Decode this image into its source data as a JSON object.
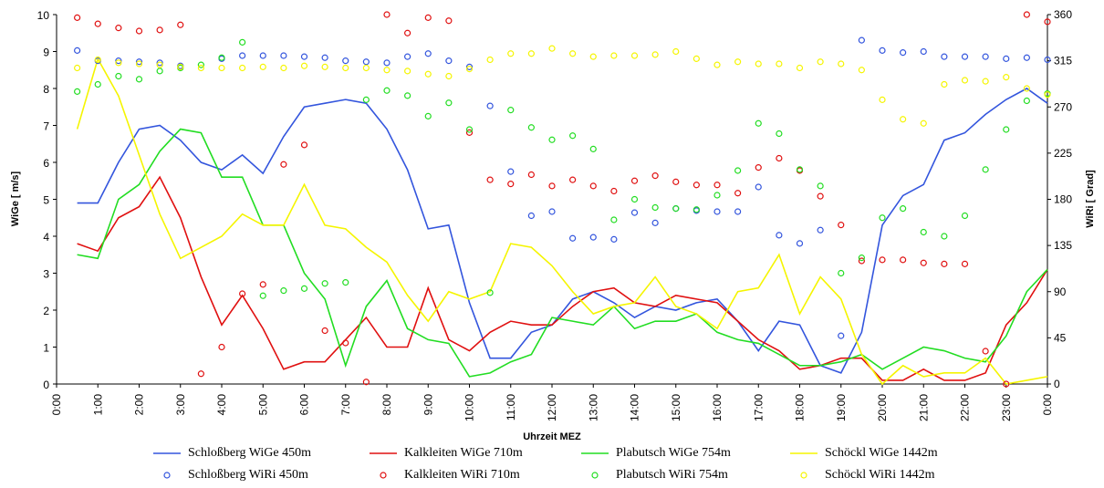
{
  "chart_data": {
    "type": "line",
    "x_label": "Uhrzeit MEZ",
    "y_label": "WiGe  [ m/s]",
    "y2_label": "WiRi  [ Grad]",
    "x": [
      0.5,
      1,
      1.5,
      2,
      2.5,
      3,
      3.5,
      4,
      4.5,
      5,
      5.5,
      6,
      6.5,
      7,
      7.5,
      8,
      8.5,
      9,
      9.5,
      10,
      10.5,
      11,
      11.5,
      12,
      12.5,
      13,
      13.5,
      14,
      14.5,
      15,
      15.5,
      16,
      16.5,
      17,
      17.5,
      18,
      18.5,
      19,
      19.5,
      20,
      20.5,
      21,
      21.5,
      22,
      22.5,
      23,
      23.5,
      24
    ],
    "xlim": [
      0,
      24
    ],
    "xticks": [
      {
        "value": 0,
        "label": "0:00"
      },
      {
        "value": 1,
        "label": "1:00"
      },
      {
        "value": 2,
        "label": "2:00"
      },
      {
        "value": 3,
        "label": "3:00"
      },
      {
        "value": 4,
        "label": "4:00"
      },
      {
        "value": 5,
        "label": "5:00"
      },
      {
        "value": 6,
        "label": "6:00"
      },
      {
        "value": 7,
        "label": "7:00"
      },
      {
        "value": 8,
        "label": "8:00"
      },
      {
        "value": 9,
        "label": "9:00"
      },
      {
        "value": 10,
        "label": "10:00"
      },
      {
        "value": 11,
        "label": "11:00"
      },
      {
        "value": 12,
        "label": "12:00"
      },
      {
        "value": 13,
        "label": "13:00"
      },
      {
        "value": 14,
        "label": "14:00"
      },
      {
        "value": 15,
        "label": "15:00"
      },
      {
        "value": 16,
        "label": "16:00"
      },
      {
        "value": 17,
        "label": "17:00"
      },
      {
        "value": 18,
        "label": "18:00"
      },
      {
        "value": 19,
        "label": "19:00"
      },
      {
        "value": 20,
        "label": "20:00"
      },
      {
        "value": 21,
        "label": "21:00"
      },
      {
        "value": 22,
        "label": "22:00"
      },
      {
        "value": 23,
        "label": "23:00"
      },
      {
        "value": 24,
        "label": "0:00"
      }
    ],
    "ylim": [
      0,
      10
    ],
    "yticks": [
      0,
      1,
      2,
      3,
      4,
      5,
      6,
      7,
      8,
      9,
      10
    ],
    "y2lim": [
      0,
      360
    ],
    "y2ticks": [
      0,
      45,
      90,
      135,
      180,
      225,
      270,
      315,
      360
    ],
    "series": [
      {
        "name": "Schloßberg WiGe 450m",
        "color": "#3355dd",
        "style": "line",
        "values": [
          4.9,
          4.9,
          6.0,
          6.9,
          7.0,
          6.6,
          6.0,
          5.8,
          6.2,
          5.7,
          6.7,
          7.5,
          7.6,
          7.7,
          7.6,
          6.9,
          5.8,
          4.2,
          4.3,
          2.2,
          0.7,
          0.7,
          1.4,
          1.6,
          2.3,
          2.5,
          2.2,
          1.8,
          2.1,
          2.0,
          2.2,
          2.3,
          1.7,
          0.9,
          1.7,
          1.6,
          0.5,
          0.3,
          1.4,
          4.3,
          5.1,
          5.4,
          6.6,
          6.8,
          7.3,
          7.7,
          8.0,
          7.6
        ]
      },
      {
        "name": "Kalkleiten WiGe 710m",
        "color": "#e01010",
        "style": "line",
        "values": [
          3.8,
          3.6,
          4.5,
          4.8,
          5.6,
          4.5,
          2.9,
          1.6,
          2.4,
          1.5,
          0.4,
          0.6,
          0.6,
          1.2,
          1.8,
          1.0,
          1.0,
          2.6,
          1.2,
          0.9,
          1.4,
          1.7,
          1.6,
          1.6,
          2.1,
          2.5,
          2.6,
          2.2,
          2.1,
          2.4,
          2.3,
          2.2,
          1.7,
          1.2,
          0.9,
          0.4,
          0.5,
          0.7,
          0.7,
          0.1,
          0.1,
          0.4,
          0.1,
          0.1,
          0.3,
          1.6,
          2.2,
          3.1
        ]
      },
      {
        "name": "Plabutsch WiGe 754m",
        "color": "#22dd22",
        "style": "line",
        "values": [
          3.5,
          3.4,
          5.0,
          5.4,
          6.3,
          6.9,
          6.8,
          5.6,
          5.6,
          4.3,
          4.3,
          3.0,
          2.3,
          0.5,
          2.1,
          2.8,
          1.5,
          1.2,
          1.1,
          0.2,
          0.3,
          0.6,
          0.8,
          1.8,
          1.7,
          1.6,
          2.1,
          1.5,
          1.7,
          1.7,
          1.9,
          1.4,
          1.2,
          1.1,
          0.8,
          0.5,
          0.5,
          0.6,
          0.8,
          0.4,
          0.7,
          1.0,
          0.9,
          0.7,
          0.6,
          1.3,
          2.5,
          3.1
        ]
      },
      {
        "name": "Schöckl WiGe 1442m",
        "color": "#f5f500",
        "style": "line",
        "values": [
          6.9,
          8.8,
          7.8,
          6.2,
          4.6,
          3.4,
          3.7,
          4.0,
          4.6,
          4.3,
          4.3,
          5.4,
          4.3,
          4.2,
          3.7,
          3.3,
          2.4,
          1.7,
          2.5,
          2.3,
          2.5,
          3.8,
          3.7,
          3.2,
          2.5,
          1.9,
          2.1,
          2.2,
          2.9,
          2.1,
          1.9,
          1.5,
          2.5,
          2.6,
          3.5,
          1.9,
          2.9,
          2.3,
          0.8,
          0.0,
          0.5,
          0.2,
          0.3,
          0.3,
          0.7,
          0.0,
          0.1,
          0.2
        ]
      },
      {
        "name": "Schloßberg WiRi 450m",
        "color": "#3355dd",
        "style": "marker",
        "axis": "y2",
        "values": [
          325,
          315,
          315,
          314,
          313,
          310,
          null,
          317,
          320,
          320,
          320,
          319,
          318,
          315,
          314,
          313,
          319,
          322,
          315,
          309,
          271,
          207,
          164,
          168,
          142,
          143,
          141,
          167,
          157,
          171,
          169,
          168,
          168,
          192,
          145,
          137,
          150,
          47,
          335,
          325,
          323,
          324,
          319,
          319,
          319,
          317,
          318,
          316
        ]
      },
      {
        "name": "Kalkleiten WiRi 710m",
        "color": "#e01010",
        "style": "marker",
        "axis": "y2",
        "values": [
          357,
          351,
          347,
          344,
          345,
          350,
          10,
          36,
          88,
          97,
          214,
          233,
          52,
          40,
          2,
          360,
          342,
          357,
          354,
          245,
          199,
          195,
          204,
          193,
          199,
          193,
          188,
          198,
          203,
          197,
          194,
          194,
          186,
          211,
          220,
          208,
          183,
          155,
          120,
          121,
          121,
          118,
          117,
          117,
          32,
          0,
          360,
          353
        ]
      },
      {
        "name": "Plabutsch WiRi 754m",
        "color": "#22dd22",
        "style": "marker",
        "axis": "y2",
        "values": [
          285,
          292,
          300,
          297,
          305,
          308,
          311,
          318,
          333,
          86,
          91,
          93,
          98,
          99,
          277,
          286,
          281,
          261,
          274,
          248,
          89,
          267,
          250,
          238,
          242,
          229,
          160,
          180,
          172,
          171,
          170,
          184,
          208,
          254,
          244,
          209,
          193,
          108,
          123,
          162,
          171,
          148,
          144,
          164,
          209,
          248,
          276,
          283
        ]
      },
      {
        "name": "Schöckl WiRi 1442m",
        "color": "#f5f500",
        "style": "marker",
        "axis": "y2",
        "values": [
          308,
          316,
          313,
          312,
          311,
          309,
          308,
          308,
          308,
          309,
          308,
          310,
          309,
          308,
          308,
          306,
          305,
          302,
          300,
          307,
          316,
          322,
          322,
          327,
          322,
          319,
          320,
          320,
          321,
          324,
          317,
          311,
          314,
          312,
          312,
          308,
          314,
          312,
          306,
          277,
          258,
          254,
          292,
          296,
          295,
          299,
          288,
          282
        ]
      }
    ]
  }
}
